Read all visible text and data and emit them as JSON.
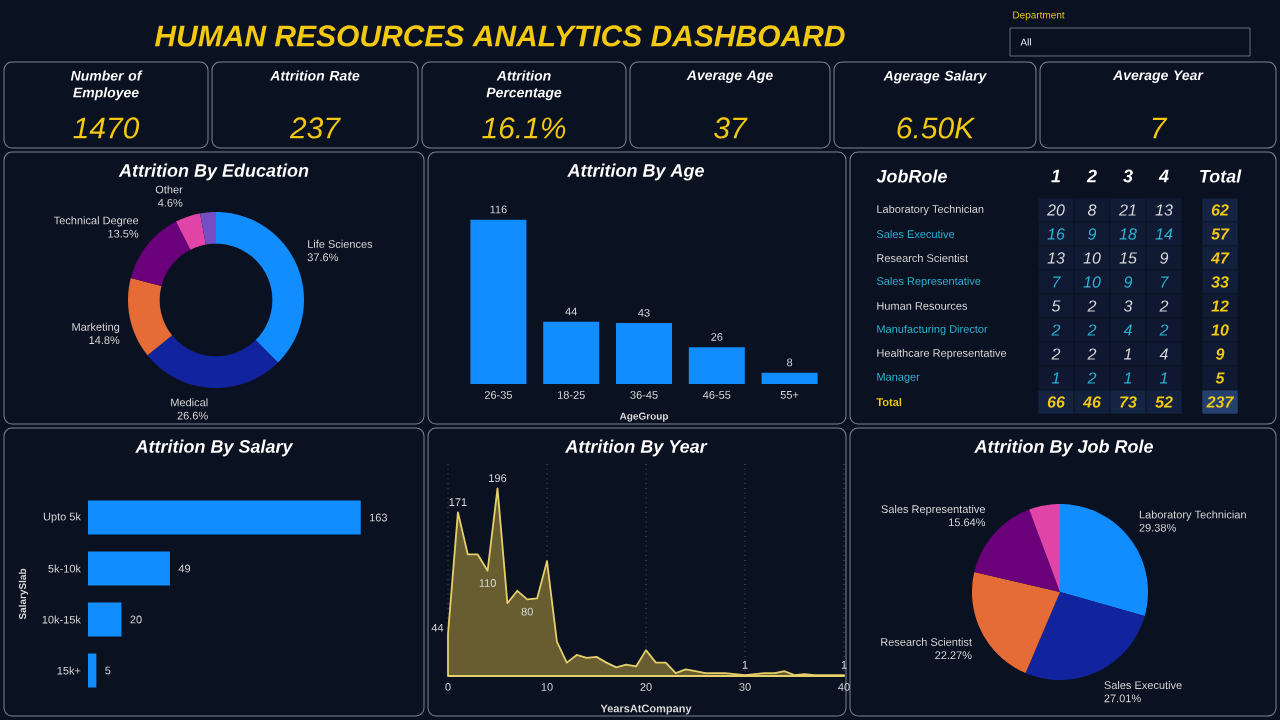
{
  "chart_data": [
    {
      "type": "other",
      "title": "HUMAN RESOURCES ANALYTICS DASHBOARD",
      "annotations": [
        "Department",
        "All",
        "Number of Employee",
        "1470",
        "Attrition Rate",
        "237",
        "Attrition Percentage",
        "16.1%",
        "Average Age",
        "37",
        "Agerage Salary",
        "6.50K",
        "Average Year",
        "7"
      ]
    },
    {
      "type": "donut",
      "title": "Attrition By Education",
      "categories": [
        "Life Sciences",
        "Medical",
        "Marketing",
        "Technical Degree",
        "Other",
        null
      ],
      "values": [
        37.6,
        26.6,
        14.8,
        13.5,
        4.6,
        2.9
      ],
      "value_labels": [
        "37.6%",
        "26.6%",
        "14.8%",
        "13.5%",
        "4.6%",
        null
      ],
      "colors": [
        "#118dff",
        "#12239e",
        "#e66c37",
        "#6b007b",
        "#e044a7",
        "#744ec2"
      ]
    },
    {
      "type": "bar",
      "title": "Attrition By Age",
      "xlabel": "AgeGroup",
      "categories": [
        "26-35",
        "18-25",
        "36-45",
        "46-55",
        "55+"
      ],
      "values": [
        116,
        44,
        43,
        26,
        8
      ],
      "color": "#118dff",
      "data_labels": true,
      "tick_labels": "x"
    },
    {
      "type": "heatmap",
      "ylabel": "JobRole",
      "categories": [
        "1",
        "2",
        "3",
        "4",
        "Total"
      ],
      "y_categories": [
        "Laboratory Technician",
        "Sales Executive",
        "Research Scientist",
        "Sales Representative",
        "Human Resources",
        "Manufacturing Director",
        "Healthcare Representative",
        "Manager",
        "Total"
      ],
      "cells": [
        [
          20,
          8,
          21,
          13,
          62
        ],
        [
          16,
          9,
          18,
          14,
          57
        ],
        [
          13,
          10,
          15,
          9,
          47
        ],
        [
          7,
          10,
          9,
          7,
          33
        ],
        [
          5,
          2,
          3,
          2,
          12
        ],
        [
          2,
          2,
          4,
          2,
          10
        ],
        [
          2,
          2,
          1,
          4,
          9
        ],
        [
          1,
          2,
          1,
          1,
          5
        ],
        [
          66,
          46,
          73,
          52,
          237
        ]
      ],
      "cell_labels": [
        [
          "20",
          "8",
          "21",
          "13",
          "62"
        ],
        [
          "16",
          "9",
          "18",
          "14",
          "57"
        ],
        [
          "13",
          "10",
          "15",
          "9",
          "47"
        ],
        [
          "7",
          "10",
          "9",
          "7",
          "33"
        ],
        [
          "5",
          "2",
          "3",
          "2",
          "12"
        ],
        [
          "2",
          "2",
          "4",
          "2",
          "10"
        ],
        [
          "2",
          "2",
          "1",
          "4",
          "9"
        ],
        [
          "1",
          "2",
          "1",
          "1",
          "5"
        ],
        [
          "66",
          "46",
          "73",
          "52",
          "237"
        ]
      ]
    },
    {
      "type": "bar",
      "orientation": "horizontal",
      "title": "Attrition By Salary",
      "ylabel": "SalarySlab",
      "categories": [
        "Upto 5k",
        "5k-10k",
        "10k-15k",
        "15k+"
      ],
      "values": [
        163,
        49,
        20,
        5
      ],
      "color": "#118dff",
      "data_labels": true,
      "tick_labels": "y"
    },
    {
      "type": "area",
      "title": "Attrition By Year",
      "xlabel": "YearsAtCompany",
      "x": [
        0,
        1,
        2,
        3,
        4,
        5,
        6,
        7,
        8,
        9,
        10,
        11,
        12,
        13,
        14,
        15,
        16,
        17,
        18,
        19,
        20,
        21,
        22,
        23,
        24,
        25,
        26,
        27,
        28,
        29,
        30,
        31,
        32,
        33,
        34,
        35,
        36,
        37,
        38,
        39,
        40
      ],
      "values": [
        44,
        171,
        127,
        127,
        110,
        196,
        76,
        89,
        80,
        81,
        120,
        36,
        14,
        22,
        19,
        20,
        14,
        9,
        12,
        10,
        27,
        14,
        14,
        3,
        7,
        5,
        3,
        3,
        3,
        2,
        1,
        2,
        3,
        3,
        5,
        1,
        2,
        1,
        1,
        1,
        1
      ],
      "value_labels": [
        "44",
        "171",
        null,
        null,
        "110",
        "196",
        null,
        null,
        "80",
        null,
        null,
        null,
        null,
        null,
        null,
        null,
        null,
        null,
        null,
        null,
        null,
        null,
        null,
        null,
        null,
        null,
        null,
        null,
        null,
        null,
        "1",
        null,
        null,
        null,
        null,
        null,
        null,
        null,
        null,
        null,
        "1"
      ],
      "color": "#e5cf6b",
      "xlim": [
        0,
        40
      ],
      "xticks": [
        0,
        10,
        20,
        30,
        40
      ],
      "grid": "x",
      "tick_labels": "x"
    },
    {
      "type": "pie",
      "title": "Attrition By Job Role",
      "categories": [
        "Laboratory Technician",
        "Sales Executive",
        "Research Scientist",
        "Sales Representative",
        null
      ],
      "values": [
        29.38,
        27.01,
        22.27,
        15.64,
        5.7
      ],
      "value_labels": [
        "29.38%",
        "27.01%",
        "22.27%",
        "15.64%",
        null
      ],
      "colors": [
        "#118dff",
        "#12239e",
        "#e66c37",
        "#6b007b",
        "#e044a7"
      ]
    }
  ]
}
